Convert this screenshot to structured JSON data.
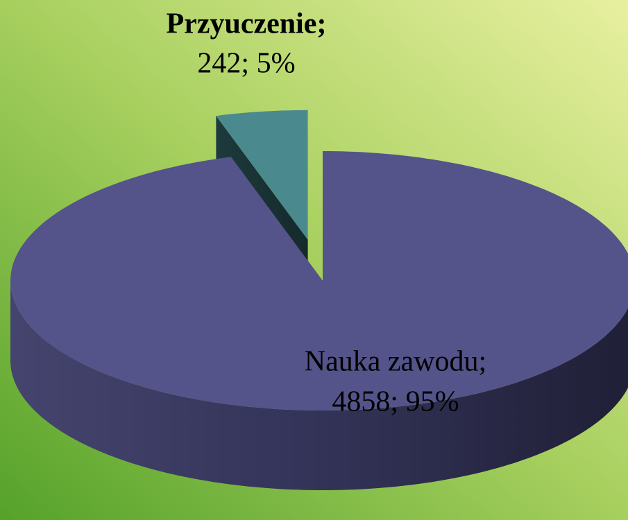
{
  "chart_data": {
    "type": "pie",
    "style": "3d",
    "categories": [
      "Nauka zawodu;",
      "Przyuczenie;"
    ],
    "values": [
      4858,
      242
    ],
    "value_labels": [
      "4858; 95%",
      "242; 5%"
    ],
    "colors": [
      "#54548a",
      "#4a8a8e"
    ],
    "exploded": [
      false,
      true
    ]
  }
}
